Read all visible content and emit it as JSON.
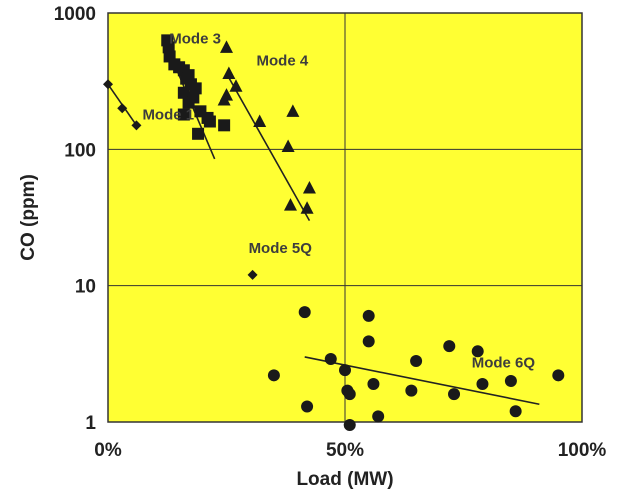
{
  "chart_data": {
    "type": "scatter",
    "xlabel": "Load (MW)",
    "ylabel": "CO (ppm)",
    "xlim": [
      0,
      100
    ],
    "ylim": [
      1,
      1000
    ],
    "yscale": "log",
    "grid": true,
    "x_ticks": [
      {
        "value": 0,
        "label": "0%"
      },
      {
        "value": 50,
        "label": "50%"
      },
      {
        "value": 100,
        "label": "100%"
      }
    ],
    "y_ticks": [
      {
        "value": 1,
        "label": "1"
      },
      {
        "value": 10,
        "label": "10"
      },
      {
        "value": 100,
        "label": "100"
      },
      {
        "value": 1000,
        "label": "1000"
      }
    ],
    "colors": {
      "plot_background": "#ffff33",
      "marker": "#1a1a1a",
      "grid": "#333333"
    },
    "series": [
      {
        "name": "Mode 1",
        "marker": "diamond",
        "points": [
          [
            0,
            300
          ],
          [
            3,
            200
          ],
          [
            6,
            150
          ]
        ],
        "trend": [
          [
            0,
            300
          ],
          [
            6,
            150
          ]
        ]
      },
      {
        "name": "Mode 3",
        "marker": "square",
        "points": [
          [
            12.5,
            630
          ],
          [
            12.8,
            560
          ],
          [
            13,
            480
          ],
          [
            14,
            420
          ],
          [
            15,
            400
          ],
          [
            16,
            380
          ],
          [
            17,
            350
          ],
          [
            16.5,
            330
          ],
          [
            17.5,
            300
          ],
          [
            18.5,
            280
          ],
          [
            16,
            260
          ],
          [
            18,
            240
          ],
          [
            17,
            220
          ],
          [
            19.5,
            190
          ],
          [
            21,
            170
          ],
          [
            21.5,
            160
          ],
          [
            16,
            180
          ],
          [
            19,
            130
          ],
          [
            24.5,
            150
          ]
        ],
        "trend": [
          [
            12.5,
            560
          ],
          [
            22.5,
            85
          ]
        ]
      },
      {
        "name": "Mode 4",
        "marker": "triangle",
        "points": [
          [
            25,
            560
          ],
          [
            25.5,
            360
          ],
          [
            27,
            290
          ],
          [
            25,
            250
          ],
          [
            24.5,
            230
          ],
          [
            32,
            160
          ],
          [
            39,
            190
          ],
          [
            38,
            105
          ],
          [
            42.5,
            52
          ],
          [
            38.5,
            39
          ],
          [
            42,
            37
          ]
        ],
        "trend": [
          [
            25,
            360
          ],
          [
            42.5,
            30
          ]
        ]
      },
      {
        "name": "Mode 5Q",
        "marker": "diamond",
        "points": [
          [
            30.5,
            12
          ]
        ]
      },
      {
        "name": "Mode 6Q",
        "marker": "circle",
        "points": [
          [
            41.5,
            6.4
          ],
          [
            35,
            2.2
          ],
          [
            42,
            1.3
          ],
          [
            47,
            2.9
          ],
          [
            50,
            2.4
          ],
          [
            50.5,
            1.7
          ],
          [
            51,
            1.6
          ],
          [
            51,
            0.95
          ],
          [
            55,
            6
          ],
          [
            55,
            3.9
          ],
          [
            56,
            1.9
          ],
          [
            57,
            1.1
          ],
          [
            64,
            1.7
          ],
          [
            65,
            2.8
          ],
          [
            72,
            3.6
          ],
          [
            73,
            1.6
          ],
          [
            78,
            3.3
          ],
          [
            79,
            1.9
          ],
          [
            85,
            2.0
          ],
          [
            86,
            1.2
          ],
          [
            95,
            2.2
          ]
        ],
        "trend": [
          [
            41.5,
            3.0
          ],
          [
            91,
            1.35
          ]
        ]
      }
    ]
  }
}
